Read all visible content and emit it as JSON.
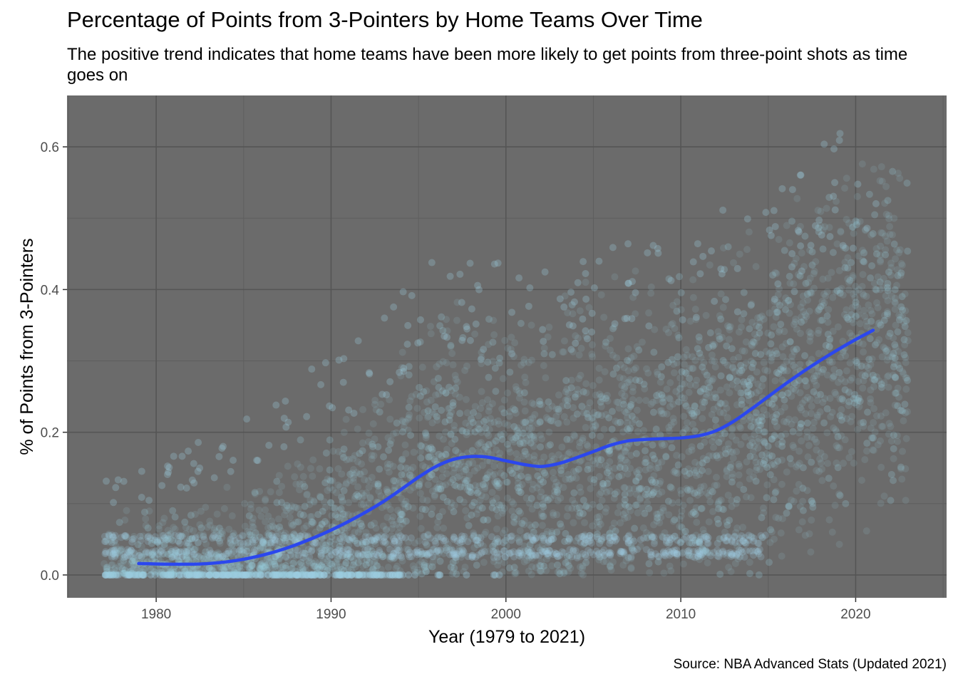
{
  "chart_data": {
    "type": "scatter",
    "title": "Percentage of Points from 3-Pointers by Home Teams Over Time",
    "subtitle": "The positive trend indicates that home teams have been more likely to get points from three-point shots as time goes on",
    "xlabel": "Year (1979 to 2021)",
    "ylabel": "% of Points from 3-Pointers",
    "caption": "Source: NBA Advanced Stats (Updated 2021)",
    "xlim": [
      1974.9,
      1980.0,
      2025.2
    ],
    "ylim": [
      -0.032,
      0.672
    ],
    "x_ticks": [
      1980,
      1990,
      2000,
      2010,
      2020
    ],
    "x_tick_labels": [
      "1980",
      "1990",
      "2000",
      "2010",
      "2020"
    ],
    "y_ticks": [
      0.0,
      0.2,
      0.4,
      0.6
    ],
    "y_tick_labels": [
      "0.0",
      "0.2",
      "0.4",
      "0.6"
    ],
    "grid": true,
    "point_color": "#9ecfe3",
    "trend_color": "#2b47ee",
    "panel_color": "#6b6b6b",
    "scatter_envelope": {
      "x": [
        1977,
        1980,
        1985,
        1990,
        1993,
        1995,
        2000,
        2005,
        2010,
        2015,
        2018,
        2020,
        2023
      ],
      "y_low": [
        0.0,
        0.0,
        0.0,
        0.0,
        0.0,
        0.0,
        0.0,
        0.0,
        0.0,
        0.0,
        0.02,
        0.05,
        0.1
      ],
      "y_high": [
        0.12,
        0.14,
        0.2,
        0.28,
        0.33,
        0.4,
        0.4,
        0.42,
        0.45,
        0.5,
        0.55,
        0.58,
        0.6
      ]
    },
    "series": [
      {
        "type": "smooth",
        "x": [
          1979,
          1981,
          1983,
          1985,
          1987,
          1989,
          1991,
          1993,
          1995,
          1996,
          1997,
          1998,
          1999,
          2000,
          2001,
          2002,
          2003,
          2004,
          2005,
          2006,
          2007,
          2008,
          2009,
          2010,
          2011,
          2012,
          2013,
          2014,
          2015,
          2016,
          2017,
          2018,
          2019,
          2020,
          2021
        ],
        "y": [
          0.016,
          0.015,
          0.016,
          0.022,
          0.034,
          0.052,
          0.075,
          0.103,
          0.137,
          0.152,
          0.162,
          0.166,
          0.165,
          0.16,
          0.155,
          0.152,
          0.156,
          0.164,
          0.173,
          0.182,
          0.188,
          0.19,
          0.191,
          0.192,
          0.195,
          0.202,
          0.215,
          0.232,
          0.25,
          0.268,
          0.285,
          0.301,
          0.316,
          0.33,
          0.343
        ]
      }
    ]
  }
}
